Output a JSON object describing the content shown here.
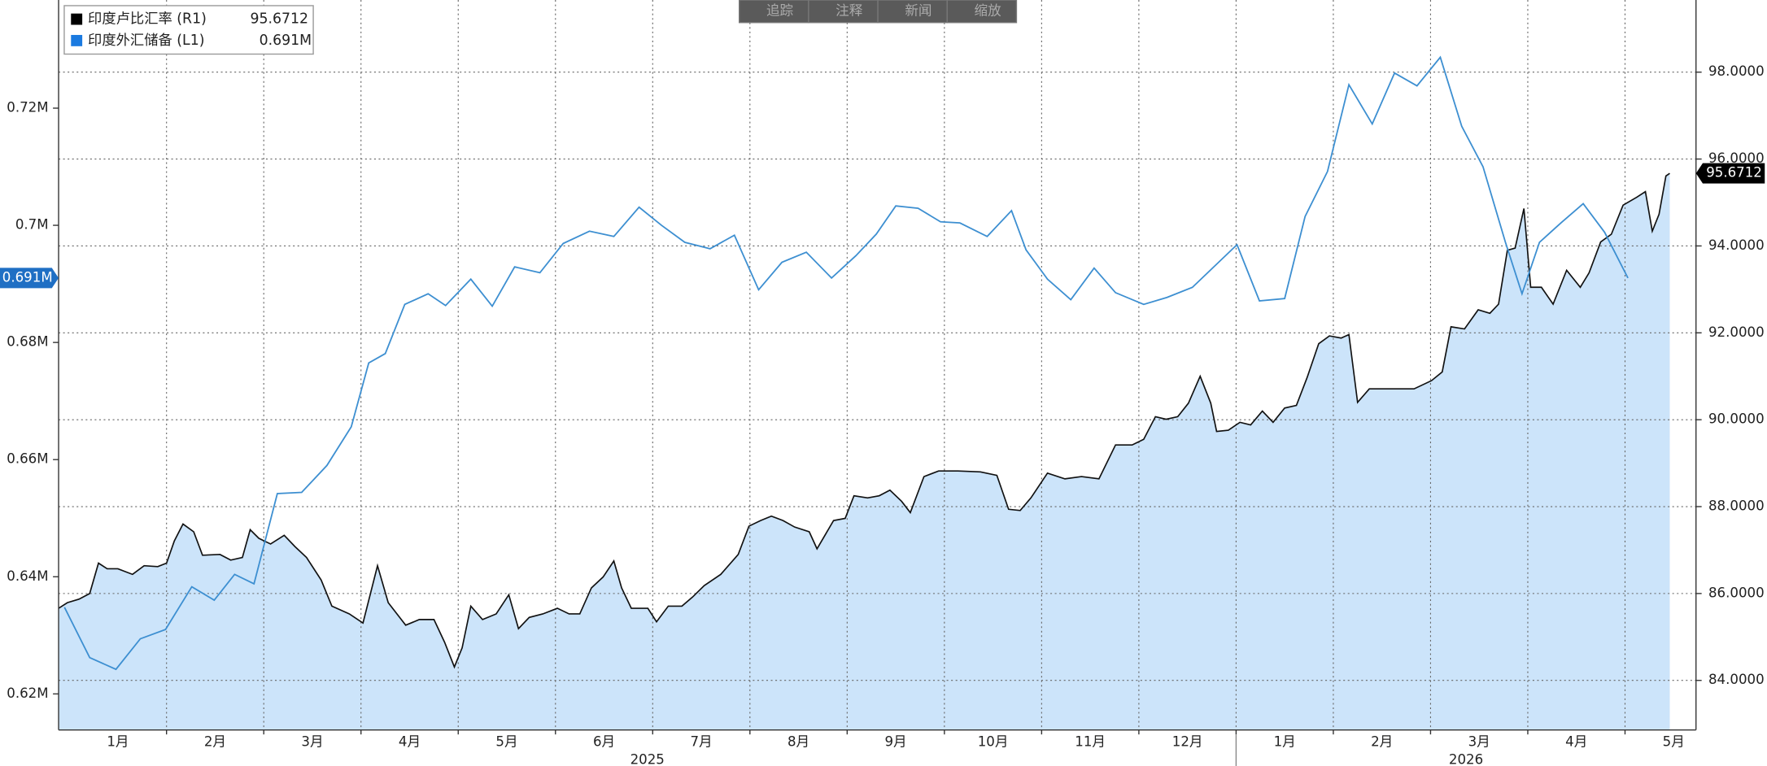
{
  "toolbar": [
    "追踪",
    "注释",
    "新闻",
    "缩放"
  ],
  "chart_data": {
    "type": "line",
    "grid": true,
    "legend": "top-left",
    "xlim": [
      -0.11,
      16.73
    ],
    "xticks": [
      {
        "value": 0.5,
        "label": "1月"
      },
      {
        "value": 1.5,
        "label": "2月"
      },
      {
        "value": 2.5,
        "label": "3月"
      },
      {
        "value": 3.5,
        "label": "4月"
      },
      {
        "value": 4.5,
        "label": "5月"
      },
      {
        "value": 5.5,
        "label": "6月"
      },
      {
        "value": 6.5,
        "label": "7月"
      },
      {
        "value": 7.5,
        "label": "8月"
      },
      {
        "value": 8.5,
        "label": "9月"
      },
      {
        "value": 9.5,
        "label": "10月"
      },
      {
        "value": 10.5,
        "label": "11月"
      },
      {
        "value": 11.5,
        "label": "12月"
      },
      {
        "value": 12.5,
        "label": "1月"
      },
      {
        "value": 13.5,
        "label": "2月"
      },
      {
        "value": 14.5,
        "label": "3月"
      },
      {
        "value": 15.5,
        "label": "4月"
      },
      {
        "value": 16.5,
        "label": "5月"
      }
    ],
    "xgroups": [
      {
        "label": "2025",
        "start": -0.11,
        "end": 12
      },
      {
        "label": "2026",
        "start": 12,
        "end": 16.73
      }
    ],
    "ylim": [
      0.61385,
      0.73846
    ],
    "yticks": [
      {
        "value": 0.62,
        "label": "0.62M"
      },
      {
        "value": 0.64,
        "label": "0.64M"
      },
      {
        "value": 0.66,
        "label": "0.66M"
      },
      {
        "value": 0.68,
        "label": "0.68M"
      },
      {
        "value": 0.7,
        "label": "0.7M"
      },
      {
        "value": 0.72,
        "label": "0.72M"
      }
    ],
    "y2lim": [
      82.86,
      99.66
    ],
    "y2ticks": [
      {
        "value": 84,
        "label": "84.0000"
      },
      {
        "value": 86,
        "label": "86.0000"
      },
      {
        "value": 88,
        "label": "88.0000"
      },
      {
        "value": 90,
        "label": "90.0000"
      },
      {
        "value": 92,
        "label": "92.0000"
      },
      {
        "value": 94,
        "label": "94.0000"
      },
      {
        "value": 96,
        "label": "96.0000"
      },
      {
        "value": 98,
        "label": "98.0000"
      }
    ],
    "series": [
      {
        "name": "印度卢比汇率 (R1)",
        "last_label": "95.6712",
        "axis": "y2",
        "color": "#111111",
        "fill": "#cce4fa",
        "x": [
          -0.11,
          -0.02,
          0.1,
          0.21,
          0.3,
          0.39,
          0.5,
          0.65,
          0.77,
          0.91,
          1.0,
          1.08,
          1.17,
          1.28,
          1.37,
          1.55,
          1.66,
          1.78,
          1.86,
          1.95,
          2.07,
          2.21,
          2.32,
          2.44,
          2.59,
          2.7,
          2.88,
          3.02,
          3.17,
          3.28,
          3.46,
          3.6,
          3.75,
          3.86,
          3.96,
          4.04,
          4.13,
          4.25,
          4.39,
          4.52,
          4.62,
          4.73,
          4.87,
          5.02,
          5.14,
          5.25,
          5.37,
          5.49,
          5.6,
          5.68,
          5.78,
          5.95,
          6.04,
          6.16,
          6.3,
          6.41,
          6.53,
          6.7,
          6.88,
          6.99,
          7.11,
          7.22,
          7.34,
          7.46,
          7.61,
          7.69,
          7.86,
          7.98,
          8.07,
          8.21,
          8.33,
          8.44,
          8.56,
          8.65,
          8.79,
          8.94,
          9.14,
          9.37,
          9.54,
          9.66,
          9.78,
          9.89,
          10.06,
          10.24,
          10.41,
          10.59,
          10.76,
          10.93,
          11.05,
          11.17,
          11.28,
          11.4,
          11.51,
          11.63,
          11.74,
          11.8,
          11.92,
          12.04,
          12.15,
          12.27,
          12.38,
          12.5,
          12.62,
          12.73,
          12.85,
          12.96,
          13.08,
          13.16,
          13.25,
          13.37,
          13.48,
          13.66,
          13.83,
          14.01,
          14.12,
          14.21,
          14.35,
          14.49,
          14.61,
          14.7,
          14.79,
          14.87,
          14.96,
          15.03,
          15.14,
          15.26,
          15.4,
          15.54,
          15.63,
          15.75,
          15.86,
          15.98,
          16.12,
          16.21,
          16.28,
          16.35,
          16.42,
          16.46
        ],
        "values": [
          85.66,
          85.79,
          85.87,
          86.0,
          86.7,
          86.57,
          86.57,
          86.44,
          86.64,
          86.62,
          86.7,
          87.21,
          87.6,
          87.42,
          86.88,
          86.9,
          86.77,
          86.83,
          87.47,
          87.27,
          87.14,
          87.34,
          87.08,
          86.83,
          86.31,
          85.71,
          85.53,
          85.32,
          86.64,
          85.79,
          85.27,
          85.4,
          85.4,
          84.88,
          84.31,
          84.75,
          85.71,
          85.4,
          85.53,
          85.97,
          85.19,
          85.45,
          85.53,
          85.66,
          85.53,
          85.53,
          86.13,
          86.38,
          86.75,
          86.13,
          85.66,
          85.66,
          85.35,
          85.71,
          85.71,
          85.92,
          86.18,
          86.44,
          86.9,
          87.55,
          87.68,
          87.78,
          87.68,
          87.53,
          87.42,
          87.03,
          87.68,
          87.73,
          88.25,
          88.2,
          88.25,
          88.38,
          88.12,
          87.86,
          88.69,
          88.82,
          88.82,
          88.8,
          88.72,
          87.94,
          87.91,
          88.2,
          88.77,
          88.64,
          88.69,
          88.64,
          89.42,
          89.42,
          89.55,
          90.07,
          90.01,
          90.07,
          90.38,
          91.0,
          90.38,
          89.73,
          89.76,
          89.94,
          89.88,
          90.2,
          89.94,
          90.27,
          90.33,
          90.97,
          91.75,
          91.93,
          91.88,
          91.96,
          90.4,
          90.71,
          90.71,
          90.71,
          90.71,
          90.9,
          91.1,
          92.14,
          92.09,
          92.53,
          92.45,
          92.66,
          93.9,
          93.95,
          94.86,
          93.05,
          93.05,
          92.66,
          93.44,
          93.05,
          93.38,
          94.09,
          94.27,
          94.94,
          95.12,
          95.25,
          94.34,
          94.73,
          95.61,
          95.6712
        ]
      },
      {
        "name": "印度外汇储备 (L1)",
        "last_label": "0.691M",
        "axis": "y",
        "color": "#3d8fd1",
        "x": [
          -0.05,
          0.21,
          0.48,
          0.73,
          0.99,
          1.26,
          1.49,
          1.7,
          1.9,
          2.14,
          2.39,
          2.65,
          2.9,
          3.08,
          3.25,
          3.45,
          3.69,
          3.87,
          4.13,
          4.35,
          4.58,
          4.84,
          5.08,
          5.35,
          5.6,
          5.86,
          6.09,
          6.33,
          6.59,
          6.84,
          7.09,
          7.33,
          7.58,
          7.84,
          8.09,
          8.3,
          8.5,
          8.73,
          8.96,
          9.16,
          9.44,
          9.69,
          9.84,
          10.06,
          10.3,
          10.54,
          10.76,
          11.05,
          11.29,
          11.55,
          12.01,
          12.24,
          12.5,
          12.71,
          12.94,
          13.16,
          13.4,
          13.63,
          13.86,
          14.1,
          14.32,
          14.54,
          14.77,
          14.94,
          15.12,
          15.34,
          15.57,
          15.79,
          16.03
        ],
        "values": [
          0.6348,
          0.6262,
          0.6242,
          0.6294,
          0.631,
          0.6383,
          0.636,
          0.6404,
          0.6388,
          0.6542,
          0.6544,
          0.659,
          0.6656,
          0.6765,
          0.6781,
          0.6865,
          0.6883,
          0.6863,
          0.6908,
          0.6862,
          0.6929,
          0.6919,
          0.6969,
          0.699,
          0.6981,
          0.7031,
          0.7,
          0.6971,
          0.696,
          0.6983,
          0.689,
          0.6937,
          0.6954,
          0.691,
          0.6948,
          0.6985,
          0.7033,
          0.7029,
          0.7006,
          0.7004,
          0.6981,
          0.7025,
          0.6958,
          0.6908,
          0.6873,
          0.6927,
          0.6885,
          0.6865,
          0.6877,
          0.6894,
          0.6967,
          0.6871,
          0.6875,
          0.7015,
          0.7092,
          0.724,
          0.7173,
          0.726,
          0.7238,
          0.7287,
          0.7169,
          0.71,
          0.6971,
          0.6883,
          0.6971,
          0.7004,
          0.7037,
          0.6988,
          0.691
        ]
      }
    ]
  }
}
